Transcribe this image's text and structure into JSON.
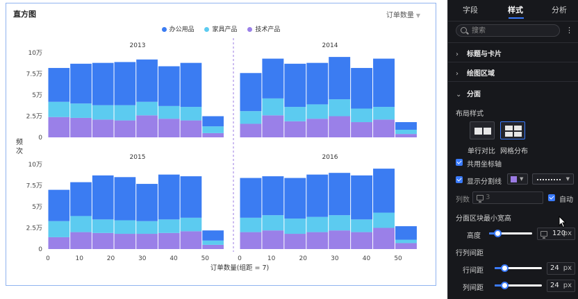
{
  "card": {
    "title": "直方图",
    "measure": "订单数量"
  },
  "legend": [
    {
      "name": "办公用品",
      "color": "#3b7cf2"
    },
    {
      "name": "家具产品",
      "color": "#5ccbf0"
    },
    {
      "name": "技术产品",
      "color": "#9a80e8"
    }
  ],
  "chart": {
    "ylabel": "频次",
    "xlabel": "订单数量(组距 = 7)"
  },
  "chart_data": {
    "type": "bar",
    "subtype": "stacked histogram, 2x2 facets",
    "bin_width": 7,
    "bin_starts": [
      0,
      7,
      14,
      21,
      28,
      35,
      42,
      49
    ],
    "x_ticks": [
      "0",
      "10",
      "20",
      "30",
      "40",
      "50"
    ],
    "y_ticks": [
      "0",
      "2.5万",
      "5万",
      "7.5万",
      "10万"
    ],
    "ylim": [
      0,
      100000
    ],
    "xlim": [
      0,
      57
    ],
    "xlabel": "订单数量(组距 = 7)",
    "ylabel": "频次",
    "legend_position": "top-center",
    "series_names": [
      "技术产品",
      "家具产品",
      "办公用品"
    ],
    "facets": [
      {
        "title": "2013",
        "series": [
          {
            "name": "技术产品",
            "values": [
              24000,
              23000,
              21000,
              20000,
              26000,
              22000,
              20000,
              5000
            ]
          },
          {
            "name": "家具产品",
            "values": [
              18000,
              17000,
              17000,
              18000,
              16000,
              15000,
              16000,
              8000
            ]
          },
          {
            "name": "办公用品",
            "values": [
              40000,
              47000,
              50000,
              51000,
              50000,
              47000,
              52000,
              12000
            ]
          }
        ]
      },
      {
        "title": "2014",
        "series": [
          {
            "name": "技术产品",
            "values": [
              16000,
              26000,
              19000,
              22000,
              25000,
              18000,
              21000,
              4000
            ]
          },
          {
            "name": "家具产品",
            "values": [
              15000,
              20000,
              17000,
              17000,
              20000,
              16000,
              15000,
              5000
            ]
          },
          {
            "name": "办公用品",
            "values": [
              45000,
              47000,
              51000,
              49000,
              50000,
              48000,
              57000,
              9000
            ]
          }
        ]
      },
      {
        "title": "2015",
        "series": [
          {
            "name": "技术产品",
            "values": [
              14000,
              20000,
              19000,
              18000,
              18000,
              19000,
              21000,
              5000
            ]
          },
          {
            "name": "家具产品",
            "values": [
              19000,
              19000,
              16000,
              16000,
              15000,
              16000,
              16000,
              5000
            ]
          },
          {
            "name": "办公用品",
            "values": [
              37000,
              40000,
              52000,
              51000,
              44000,
              53000,
              49000,
              12000
            ]
          }
        ]
      },
      {
        "title": "2016",
        "series": [
          {
            "name": "技术产品",
            "values": [
              20000,
              22000,
              18000,
              20000,
              22000,
              20000,
              25000,
              7000
            ]
          },
          {
            "name": "家具产品",
            "values": [
              17000,
              18000,
              18000,
              18000,
              18000,
              15000,
              18000,
              4000
            ]
          },
          {
            "name": "办公用品",
            "values": [
              47000,
              46000,
              48000,
              50000,
              50000,
              52000,
              52000,
              16000
            ]
          }
        ]
      }
    ]
  },
  "panel": {
    "tabs": [
      "字段",
      "样式",
      "分析"
    ],
    "search_placeholder": "搜索",
    "more": "⋮",
    "sections": {
      "title_card": "标题与卡片",
      "plot_area": "绘图区域",
      "facet": "分面"
    },
    "layout_label": "布局样式",
    "layout_options": [
      "单行对比",
      "网格分布"
    ],
    "shared_axis": "共用坐标轴",
    "show_divider": "显示分割线",
    "columns_label": "列数",
    "columns_value": "3",
    "auto_label": "自动",
    "min_size_label": "分面区块最小宽高",
    "height_label": "高度",
    "height_value": "120",
    "height_unit": "px",
    "spacing_label": "行列间距",
    "row_gap_label": "行间距",
    "row_gap_value": "24",
    "col_gap_label": "列间距",
    "col_gap_value": "24",
    "unit": "px",
    "divider_color": "#9b7be3",
    "accent": "#3a7bff",
    "height_slider": 0.2,
    "row_gap_slider": 0.2,
    "col_gap_slider": 0.2
  }
}
